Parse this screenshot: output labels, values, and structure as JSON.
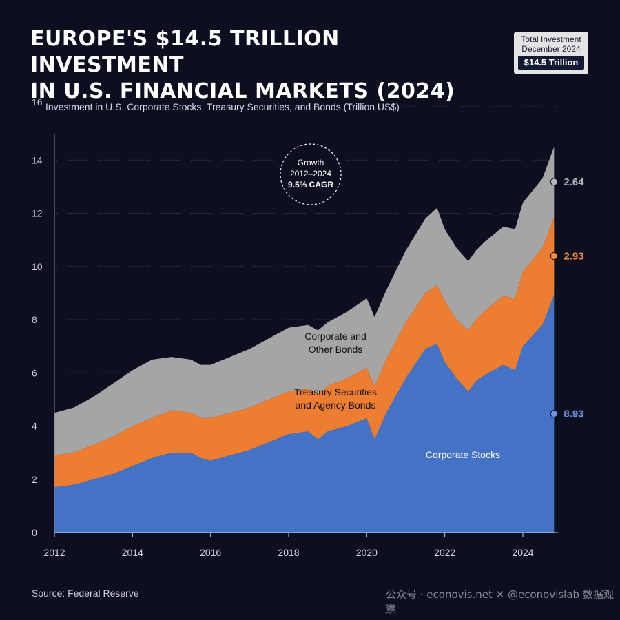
{
  "title": {
    "line1": "EUROPE'S $14.5 TRILLION INVESTMENT",
    "line2": "IN U.S. FINANCIAL MARKETS (2024)"
  },
  "badge": {
    "line1": "Total Investment",
    "line2": "December 2024",
    "value": "$14.5 Trillion"
  },
  "source": "Source: Federal Reserve",
  "watermark": "公众号 · econovis.net  ✕ @econovislab  数据观察",
  "colors": {
    "background": "#0d0f20",
    "stocks": "#4472c4",
    "treasury": "#ed7d31",
    "bonds": "#a5a5a5"
  },
  "chart_data": {
    "type": "area",
    "stacked": true,
    "subtitle": "Investment in U.S. Corporate Stocks, Treasury Securities, and Bonds (Trillion US$)",
    "ylim": [
      0,
      16
    ],
    "xlim": [
      2012,
      2024.9
    ],
    "y_ticks": [
      "0",
      "2",
      "4",
      "6",
      "8",
      "10",
      "12",
      "14",
      "16"
    ],
    "x_ticks": [
      "2012",
      "2014",
      "2016",
      "2018",
      "2020",
      "2022",
      "2024"
    ],
    "grid": true,
    "x": [
      2012.0,
      2012.5,
      2013.0,
      2013.5,
      2014.0,
      2014.5,
      2015.0,
      2015.5,
      2015.75,
      2016.0,
      2016.5,
      2017.0,
      2017.5,
      2018.0,
      2018.5,
      2018.75,
      2019.0,
      2019.5,
      2020.0,
      2020.2,
      2020.5,
      2021.0,
      2021.5,
      2021.8,
      2022.0,
      2022.3,
      2022.6,
      2022.8,
      2023.0,
      2023.5,
      2023.8,
      2024.0,
      2024.5,
      2024.8
    ],
    "series": [
      {
        "name": "Corporate Stocks",
        "end_label": "8.93",
        "values": [
          1.7,
          1.8,
          2.0,
          2.2,
          2.5,
          2.8,
          3.0,
          3.0,
          2.8,
          2.7,
          2.9,
          3.1,
          3.4,
          3.7,
          3.8,
          3.5,
          3.8,
          4.0,
          4.3,
          3.5,
          4.5,
          5.8,
          6.9,
          7.1,
          6.4,
          5.8,
          5.3,
          5.7,
          5.9,
          6.3,
          6.1,
          7.0,
          7.8,
          8.93
        ]
      },
      {
        "name": "Treasury Securities\nand Agency Bonds",
        "end_label": "2.93",
        "values": [
          1.2,
          1.2,
          1.3,
          1.4,
          1.5,
          1.5,
          1.6,
          1.5,
          1.5,
          1.6,
          1.6,
          1.6,
          1.6,
          1.6,
          1.6,
          1.7,
          1.7,
          1.8,
          1.9,
          2.0,
          2.0,
          2.1,
          2.1,
          2.2,
          2.3,
          2.2,
          2.3,
          2.3,
          2.4,
          2.6,
          2.7,
          2.8,
          2.9,
          2.93
        ]
      },
      {
        "name": "Corporate and\nOther Bonds",
        "end_label": "2.64",
        "values": [
          1.6,
          1.7,
          1.8,
          2.0,
          2.1,
          2.2,
          2.0,
          2.0,
          2.0,
          2.0,
          2.1,
          2.2,
          2.3,
          2.4,
          2.4,
          2.4,
          2.4,
          2.5,
          2.6,
          2.6,
          2.6,
          2.7,
          2.8,
          2.9,
          2.7,
          2.7,
          2.6,
          2.6,
          2.6,
          2.6,
          2.6,
          2.6,
          2.6,
          2.64
        ]
      }
    ],
    "annotation": {
      "line1": "Growth",
      "line2": "2012–2024",
      "line3": "9.5% CAGR"
    }
  }
}
